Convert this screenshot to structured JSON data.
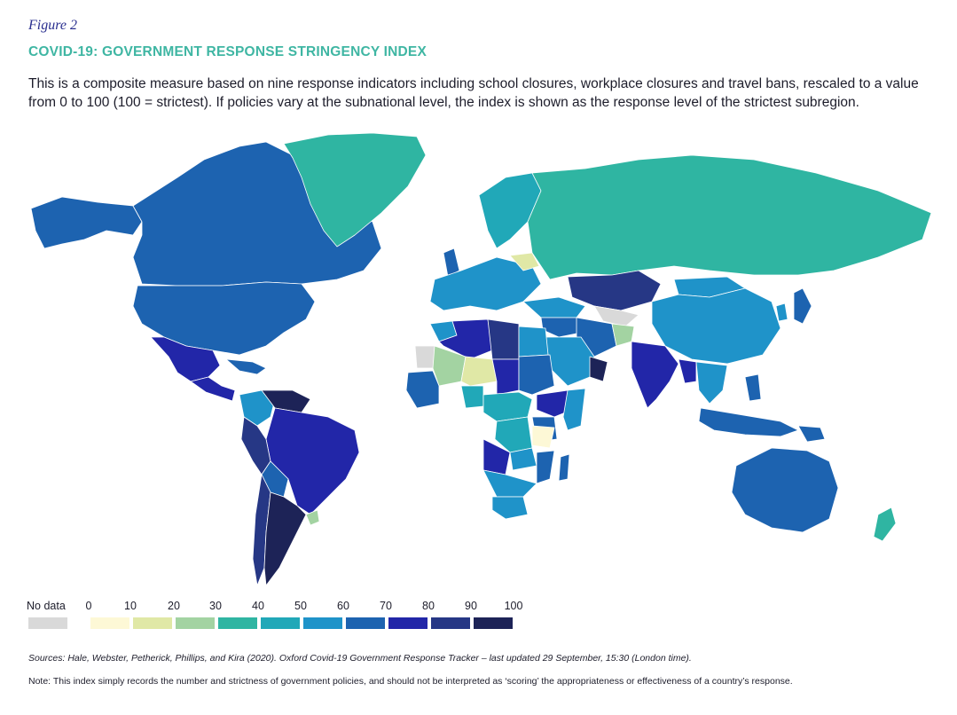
{
  "figure_label": "Figure 2",
  "title": "COVID-19: GOVERNMENT RESPONSE STRINGENCY INDEX",
  "description": "This is a composite measure based on nine response indicators including school closures, workplace closures and travel bans, rescaled to a value from 0 to 100 (100 = strictest). If policies vary at the subnational level, the index is shown as the response level of the strictest subregion.",
  "legend": {
    "nodata_label": "No data",
    "nodata_color": "#d9d9d9",
    "ticks": [
      "0",
      "10",
      "20",
      "30",
      "40",
      "50",
      "60",
      "70",
      "80",
      "90",
      "100"
    ],
    "colors": [
      "#fdf8d6",
      "#e0e8a6",
      "#a3d3a2",
      "#2fb5a2",
      "#21a8b8",
      "#1f93c9",
      "#1d63b0",
      "#2226a8",
      "#263785",
      "#1d2357"
    ]
  },
  "regions": [
    {
      "name": "Canada",
      "color": "#1d63b0"
    },
    {
      "name": "Alaska",
      "color": "#1d63b0"
    },
    {
      "name": "United States",
      "color": "#1d63b0"
    },
    {
      "name": "Greenland",
      "color": "#2fb5a2"
    },
    {
      "name": "Mexico",
      "color": "#2226a8"
    },
    {
      "name": "Central America",
      "color": "#2226a8"
    },
    {
      "name": "Caribbean",
      "color": "#1d63b0"
    },
    {
      "name": "Venezuela",
      "color": "#1d2357"
    },
    {
      "name": "Colombia",
      "color": "#1f93c9"
    },
    {
      "name": "Brazil",
      "color": "#2226a8"
    },
    {
      "name": "Peru",
      "color": "#263785"
    },
    {
      "name": "Bolivia",
      "color": "#1d63b0"
    },
    {
      "name": "Argentina",
      "color": "#1d2357"
    },
    {
      "name": "Chile",
      "color": "#263785"
    },
    {
      "name": "Uruguay",
      "color": "#a3d3a2"
    },
    {
      "name": "Scandinavia",
      "color": "#21a8b8"
    },
    {
      "name": "Western Europe",
      "color": "#1f93c9"
    },
    {
      "name": "United Kingdom",
      "color": "#1d63b0"
    },
    {
      "name": "Belarus",
      "color": "#e0e8a6"
    },
    {
      "name": "Russia",
      "color": "#2fb5a2"
    },
    {
      "name": "Kazakhstan",
      "color": "#263785"
    },
    {
      "name": "Central Asia",
      "color": "#d9d9d9"
    },
    {
      "name": "China",
      "color": "#1f93c9"
    },
    {
      "name": "Mongolia",
      "color": "#1f93c9"
    },
    {
      "name": "Japan",
      "color": "#1d63b0"
    },
    {
      "name": "Korea",
      "color": "#1f93c9"
    },
    {
      "name": "Turkey",
      "color": "#1f93c9"
    },
    {
      "name": "Middle East",
      "color": "#1d63b0"
    },
    {
      "name": "Iran",
      "color": "#1d63b0"
    },
    {
      "name": "Afghanistan",
      "color": "#a3d3a2"
    },
    {
      "name": "Saudi Arabia",
      "color": "#1f93c9"
    },
    {
      "name": "Oman",
      "color": "#1d2357"
    },
    {
      "name": "India",
      "color": "#2226a8"
    },
    {
      "name": "Myanmar",
      "color": "#2226a8"
    },
    {
      "name": "Southeast Asia",
      "color": "#1f93c9"
    },
    {
      "name": "Philippines",
      "color": "#1d63b0"
    },
    {
      "name": "Indonesia",
      "color": "#1d63b0"
    },
    {
      "name": "Papua New Guinea",
      "color": "#1d63b0"
    },
    {
      "name": "Australia",
      "color": "#1d63b0"
    },
    {
      "name": "New Zealand",
      "color": "#2fb5a2"
    },
    {
      "name": "Morocco",
      "color": "#1f93c9"
    },
    {
      "name": "Algeria",
      "color": "#2226a8"
    },
    {
      "name": "Libya",
      "color": "#263785"
    },
    {
      "name": "Egypt",
      "color": "#1f93c9"
    },
    {
      "name": "Sudan",
      "color": "#1d63b0"
    },
    {
      "name": "Chad",
      "color": "#2226a8"
    },
    {
      "name": "Niger",
      "color": "#e0e8a6"
    },
    {
      "name": "Mali",
      "color": "#a3d3a2"
    },
    {
      "name": "Mauritania",
      "color": "#d9d9d9"
    },
    {
      "name": "West Africa",
      "color": "#1d63b0"
    },
    {
      "name": "Nigeria",
      "color": "#21a8b8"
    },
    {
      "name": "Ethiopia",
      "color": "#2226a8"
    },
    {
      "name": "Somalia",
      "color": "#1f93c9"
    },
    {
      "name": "Kenya",
      "color": "#1d63b0"
    },
    {
      "name": "Central Africa",
      "color": "#21a8b8"
    },
    {
      "name": "DR Congo",
      "color": "#21a8b8"
    },
    {
      "name": "Tanzania",
      "color": "#fdf8d6"
    },
    {
      "name": "Angola",
      "color": "#2226a8"
    },
    {
      "name": "Zambia",
      "color": "#1f93c9"
    },
    {
      "name": "Mozambique",
      "color": "#1d63b0"
    },
    {
      "name": "Southern Africa",
      "color": "#1f93c9"
    },
    {
      "name": "South Africa",
      "color": "#1f93c9"
    },
    {
      "name": "Madagascar",
      "color": "#1d63b0"
    }
  ],
  "sources": "Sources: Hale, Webster, Petherick, Phillips, and Kira (2020). Oxford Covid-19 Government Response Tracker – last updated 29 September, 15:30 (London time).",
  "note": "Note: This index simply records the number and strictness of government policies, and should not be interpreted as ‘scoring’ the appropriateness or effectiveness of a country’s response."
}
